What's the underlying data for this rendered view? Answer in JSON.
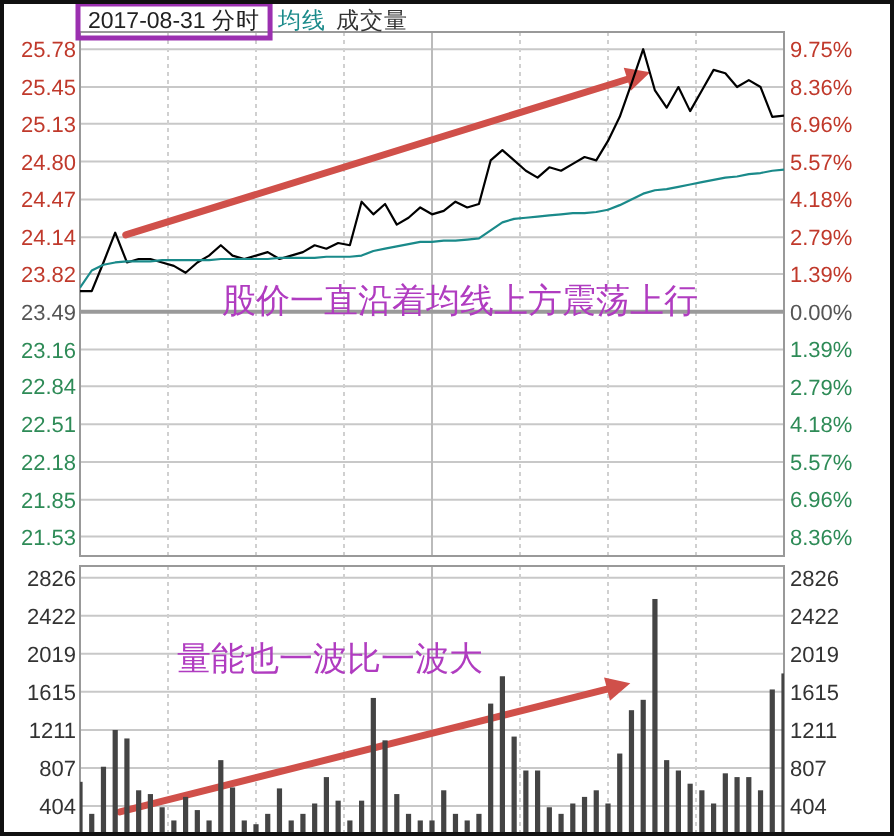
{
  "chart_data": [
    {
      "type": "line",
      "title": "2017-08-31 分时",
      "legend": "top left",
      "grid": true,
      "categories": [
        null,
        null,
        null,
        null,
        null,
        null,
        null,
        null,
        null,
        null,
        null,
        null,
        null,
        null,
        null,
        null,
        null,
        null,
        null,
        null,
        null,
        null,
        null,
        null,
        null,
        null,
        null,
        null,
        null,
        null,
        null,
        null,
        null,
        null,
        null,
        null,
        null,
        null,
        null,
        null,
        null,
        null,
        null,
        null,
        null,
        null,
        null,
        null,
        null,
        null,
        null,
        null,
        null,
        null,
        null,
        null,
        null,
        null,
        null,
        null,
        null
      ],
      "series": [
        {
          "color": "#000000",
          "values": [
            23.67,
            23.67,
            23.92,
            24.18,
            23.92,
            23.95,
            23.95,
            23.92,
            23.89,
            23.83,
            23.92,
            23.98,
            24.07,
            23.98,
            23.95,
            23.98,
            24.01,
            23.95,
            23.98,
            24.01,
            24.07,
            24.04,
            24.09,
            24.07,
            24.45,
            24.34,
            24.43,
            24.25,
            24.31,
            24.4,
            24.34,
            24.37,
            24.45,
            24.4,
            24.43,
            24.81,
            24.9,
            24.81,
            24.72,
            24.66,
            24.75,
            24.72,
            24.78,
            24.84,
            24.81,
            24.98,
            25.19,
            25.48,
            25.78,
            25.42,
            25.27,
            25.45,
            25.24,
            25.42,
            25.6,
            25.57,
            25.45,
            25.51,
            25.45,
            25.19,
            25.2
          ]
        },
        {
          "name": "均线",
          "color": "#1a8a8a",
          "values": [
            23.7,
            23.85,
            23.9,
            23.92,
            23.93,
            23.93,
            23.93,
            23.94,
            23.94,
            23.94,
            23.94,
            23.94,
            23.95,
            23.95,
            23.95,
            23.95,
            23.95,
            23.96,
            23.96,
            23.96,
            23.96,
            23.97,
            23.97,
            23.97,
            23.98,
            24.02,
            24.04,
            24.06,
            24.08,
            24.1,
            24.1,
            24.11,
            24.11,
            24.12,
            24.13,
            24.2,
            24.27,
            24.3,
            24.31,
            24.32,
            24.33,
            24.34,
            24.35,
            24.35,
            24.36,
            24.38,
            24.42,
            24.47,
            24.52,
            24.55,
            24.56,
            24.58,
            24.6,
            24.62,
            24.64,
            24.66,
            24.67,
            24.69,
            24.7,
            24.72,
            24.73
          ]
        }
      ],
      "ylim": [
        21.36,
        25.93
      ],
      "yticks": [
        {
          "value": 25.78,
          "label": "25.78"
        },
        {
          "value": 25.45,
          "label": "25.45"
        },
        {
          "value": 25.13,
          "label": "25.13"
        },
        {
          "value": 24.8,
          "label": "24.80"
        },
        {
          "value": 24.47,
          "label": "24.47"
        },
        {
          "value": 24.14,
          "label": "24.14"
        },
        {
          "value": 23.82,
          "label": "23.82"
        },
        {
          "value": 23.49,
          "label": "23.49"
        },
        {
          "value": 23.16,
          "label": "23.16"
        },
        {
          "value": 22.84,
          "label": "22.84"
        },
        {
          "value": 22.51,
          "label": "22.51"
        },
        {
          "value": 22.18,
          "label": "22.18"
        },
        {
          "value": 21.85,
          "label": "21.85"
        },
        {
          "value": 21.53,
          "label": "21.53"
        }
      ],
      "y2lim": [
        -9.07,
        10.39
      ],
      "y2ticks": [
        {
          "value": 9.75,
          "label": "9.75%"
        },
        {
          "value": 8.36,
          "label": "8.36%"
        },
        {
          "value": 6.96,
          "label": "6.96%"
        },
        {
          "value": 5.57,
          "label": "5.57%"
        },
        {
          "value": 4.18,
          "label": "4.18%"
        },
        {
          "value": 2.79,
          "label": "2.79%"
        },
        {
          "value": 1.39,
          "label": "1.39%"
        },
        {
          "value": 0,
          "label": "0.00%"
        },
        {
          "value": -1.39,
          "label": "1.39%"
        },
        {
          "value": -2.79,
          "label": "2.79%"
        },
        {
          "value": -4.18,
          "label": "4.18%"
        },
        {
          "value": -5.57,
          "label": "5.57%"
        },
        {
          "value": -6.96,
          "label": "6.96%"
        },
        {
          "value": -8.36,
          "label": "8.36%"
        }
      ],
      "ref_lines": [
        {
          "axis": "y",
          "value": 23.49
        }
      ],
      "annotations": [
        "成交量",
        "股价一直沿着均线上方震荡上行"
      ]
    },
    {
      "type": "bar",
      "grid": true,
      "categories": [
        null,
        null,
        null,
        null,
        null,
        null,
        null,
        null,
        null,
        null,
        null,
        null,
        null,
        null,
        null,
        null,
        null,
        null,
        null,
        null,
        null,
        null,
        null,
        null,
        null,
        null,
        null,
        null,
        null,
        null,
        null,
        null,
        null,
        null,
        null,
        null,
        null,
        null,
        null,
        null,
        null,
        null,
        null,
        null,
        null,
        null,
        null,
        null,
        null,
        null,
        null,
        null,
        null,
        null,
        null,
        null,
        null,
        null,
        null,
        null,
        null
      ],
      "color": "#444444",
      "values": [
        660,
        320,
        820,
        1210,
        1120,
        570,
        530,
        390,
        250,
        500,
        360,
        250,
        890,
        600,
        250,
        210,
        320,
        590,
        250,
        320,
        430,
        710,
        460,
        250,
        460,
        1550,
        1100,
        530,
        320,
        250,
        250,
        570,
        320,
        250,
        320,
        1490,
        1780,
        1140,
        780,
        780,
        390,
        320,
        430,
        500,
        570,
        430,
        960,
        1420,
        1530,
        2600,
        890,
        780,
        640,
        570,
        430,
        750,
        710,
        710,
        570,
        1640,
        1810
      ],
      "ylim": [
        85,
        2950
      ],
      "yticks": [
        404,
        807,
        1211,
        1615,
        2019,
        2422,
        2826
      ],
      "y2lim": [
        85,
        2950
      ],
      "y2ticks": [
        404,
        807,
        1211,
        1615,
        2019,
        2422,
        2826
      ],
      "annotations": [
        "量能也一波比一波大"
      ]
    }
  ]
}
